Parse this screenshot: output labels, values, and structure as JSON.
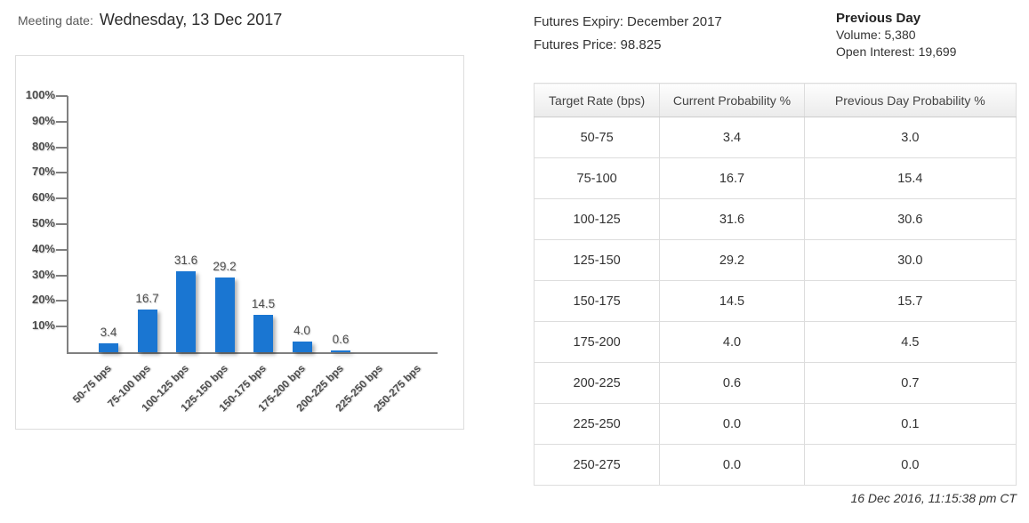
{
  "header": {
    "meeting_date_label": "Meeting date:",
    "meeting_date_value": "Wednesday, 13 Dec 2017",
    "futures_expiry": "Futures Expiry: December 2017",
    "futures_price": "Futures Price: 98.825",
    "previous_day": {
      "title": "Previous Day",
      "volume": "Volume: 5,380",
      "open_interest": "Open Interest: 19,699"
    }
  },
  "chart_data": {
    "type": "bar",
    "title": "",
    "categories": [
      "50-75 bps",
      "75-100 bps",
      "100-125 bps",
      "125-150 bps",
      "150-175 bps",
      "175-200 bps",
      "200-225 bps",
      "225-250 bps",
      "250-275 bps"
    ],
    "values": [
      3.4,
      16.7,
      31.6,
      29.2,
      14.5,
      4.0,
      0.6,
      0.0,
      0.0
    ],
    "value_labels": [
      "3.4",
      "16.7",
      "31.6",
      "29.2",
      "14.5",
      "4.0",
      "0.6",
      "",
      ""
    ],
    "xlabel": "",
    "ylabel": "",
    "ylim": [
      0,
      100
    ],
    "y_tick_labels": [
      "10%",
      "20%",
      "30%",
      "40%",
      "50%",
      "60%",
      "70%",
      "80%",
      "90%",
      "100%"
    ],
    "grid": false,
    "legend": false,
    "bar_color": "#1a76d2",
    "axis_color": "#808080",
    "label_color": "#4d4d4d"
  },
  "table": {
    "columns": [
      "Target Rate (bps)",
      "Current Probability %",
      "Previous Day Probability %"
    ],
    "rows": [
      [
        "50-75",
        "3.4",
        "3.0"
      ],
      [
        "75-100",
        "16.7",
        "15.4"
      ],
      [
        "100-125",
        "31.6",
        "30.6"
      ],
      [
        "125-150",
        "29.2",
        "30.0"
      ],
      [
        "150-175",
        "14.5",
        "15.7"
      ],
      [
        "175-200",
        "4.0",
        "4.5"
      ],
      [
        "200-225",
        "0.6",
        "0.7"
      ],
      [
        "225-250",
        "0.0",
        "0.1"
      ],
      [
        "250-275",
        "0.0",
        "0.0"
      ]
    ]
  },
  "footer": {
    "timestamp": "16 Dec 2016, 11:15:38 pm CT"
  }
}
